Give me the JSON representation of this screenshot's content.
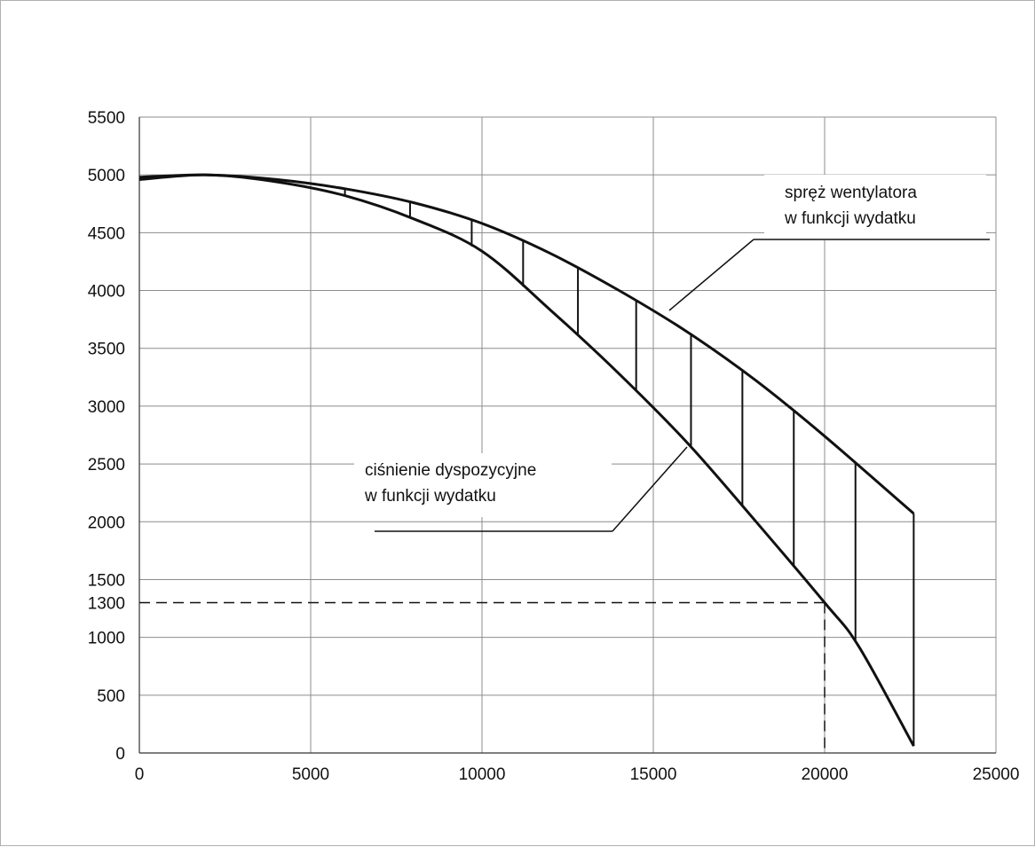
{
  "chart_data": {
    "type": "line",
    "xlim": [
      0,
      25000
    ],
    "ylim": [
      0,
      5500
    ],
    "x_ticks": [
      0,
      5000,
      10000,
      15000,
      20000,
      25000
    ],
    "y_ticks": [
      0,
      500,
      1000,
      1300,
      1500,
      2000,
      2500,
      3000,
      3500,
      4000,
      4500,
      5000,
      5500
    ],
    "x_tick_labels": [
      "0",
      "5000",
      "10000",
      "15000",
      "20000",
      "25000"
    ],
    "y_tick_labels": [
      "0",
      "500",
      "1000",
      "1300",
      "1500",
      "2000",
      "2500",
      "3000",
      "3500",
      "4000",
      "4500",
      "5000",
      "5500"
    ],
    "grid": true,
    "series": [
      {
        "x": [
          0,
          2000,
          4000,
          6000,
          8000,
          10000,
          12000,
          14000,
          16000,
          18000,
          20000,
          22600
        ],
        "y": [
          4980,
          5000,
          4960,
          4880,
          4760,
          4580,
          4320,
          4000,
          3640,
          3220,
          2740,
          2070
        ]
      },
      {
        "x": [
          0,
          2000,
          4000,
          6000,
          8000,
          10000,
          12000,
          14000,
          16000,
          18000,
          20000,
          21000,
          22600
        ],
        "y": [
          4960,
          5000,
          4940,
          4820,
          4620,
          4340,
          3830,
          3280,
          2680,
          2000,
          1300,
          920,
          60
        ]
      }
    ],
    "hatch_x": [
      6000,
      7900,
      9700,
      11200,
      12800,
      14500,
      16100,
      17600,
      19100,
      20900,
      22600
    ],
    "reference": {
      "x": 20000,
      "y": 1300,
      "style": "dashed"
    },
    "annotations": [
      {
        "lines": [
          "spręż wentylatora",
          "w funkcji wydatku"
        ],
        "series": 0
      },
      {
        "lines": [
          "ciśnienie dyspozycyjne",
          "w funkcji wydatku"
        ],
        "series": 1
      }
    ]
  }
}
